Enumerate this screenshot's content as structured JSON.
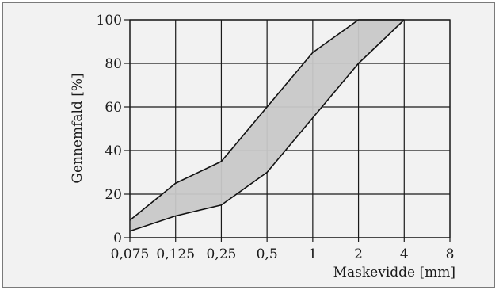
{
  "chart_data": {
    "type": "area",
    "title": "",
    "xlabel": "Maskevidde [mm]",
    "ylabel": "Gennemfald [%]",
    "categories": [
      "0,075",
      "0,125",
      "0,25",
      "0,5",
      "1",
      "2",
      "4",
      "8"
    ],
    "ylim": [
      0,
      100
    ],
    "yticks": [
      "0",
      "20",
      "40",
      "60",
      "80",
      "100"
    ],
    "grid": true,
    "legend": "none",
    "band_fill_color": "#c8c8c8",
    "series": [
      {
        "x": [
          "0,075",
          "0,125",
          "0,25",
          "0,5",
          "1",
          "2",
          "4"
        ],
        "values": [
          8,
          25,
          35,
          60,
          85,
          100,
          100
        ]
      },
      {
        "x": [
          "0,075",
          "0,125",
          "0,25",
          "0,5",
          "1",
          "2",
          "4"
        ],
        "values": [
          3,
          10,
          15,
          30,
          55,
          80,
          100
        ]
      }
    ]
  }
}
